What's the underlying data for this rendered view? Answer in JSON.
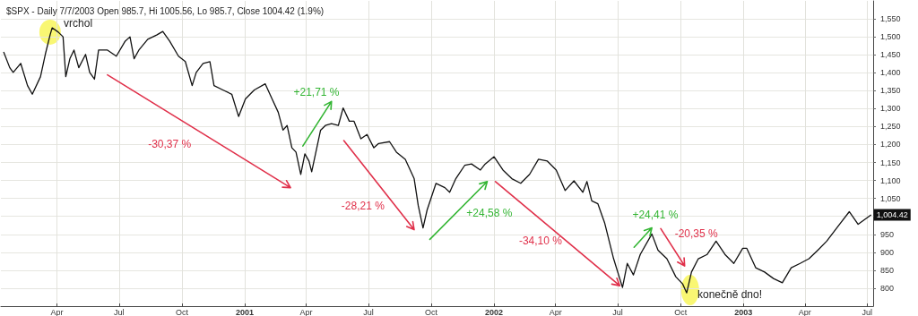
{
  "chart_data": {
    "type": "line",
    "title": "$SPX - Daily 7/7/2003 Open 985.7, Hi 1005.56, Lo 985.7, Close 1004.42 (1.9%)",
    "x": [
      "2000-01-14",
      "2000-01-23",
      "2000-01-28",
      "2000-02-08",
      "2000-02-18",
      "2000-02-25",
      "2000-03-08",
      "2000-03-15",
      "2000-03-22",
      "2000-03-25",
      "2000-04-03",
      "2000-04-10",
      "2000-04-14",
      "2000-04-20",
      "2000-04-26",
      "2000-05-03",
      "2000-05-13",
      "2000-05-19",
      "2000-05-26",
      "2000-06-01",
      "2000-06-14",
      "2000-06-27",
      "2000-07-10",
      "2000-07-17",
      "2000-07-23",
      "2000-07-30",
      "2000-08-12",
      "2000-08-25",
      "2000-09-03",
      "2000-09-13",
      "2000-09-26",
      "2000-10-06",
      "2000-10-16",
      "2000-10-22",
      "2000-11-01",
      "2000-11-11",
      "2000-11-17",
      "2000-11-30",
      "2000-12-13",
      "2000-12-23",
      "2001-01-02",
      "2001-01-15",
      "2001-01-31",
      "2001-02-10",
      "2001-02-19",
      "2001-02-26",
      "2001-03-04",
      "2001-03-11",
      "2001-03-17",
      "2001-03-24",
      "2001-03-30",
      "2001-04-05",
      "2001-04-09",
      "2001-04-22",
      "2001-04-29",
      "2001-05-08",
      "2001-05-18",
      "2001-05-25",
      "2001-06-03",
      "2001-06-10",
      "2001-06-20",
      "2001-06-29",
      "2001-07-09",
      "2001-07-16",
      "2001-08-01",
      "2001-08-11",
      "2001-08-24",
      "2001-09-06",
      "2001-09-12",
      "2001-09-19",
      "2001-09-25",
      "2001-10-08",
      "2001-10-21",
      "2001-10-28",
      "2001-11-06",
      "2001-11-19",
      "2001-11-29",
      "2001-12-12",
      "2001-12-19",
      "2002-01-01",
      "2002-01-14",
      "2002-01-27",
      "2002-02-09",
      "2002-02-22",
      "2002-03-07",
      "2002-03-20",
      "2002-04-02",
      "2002-04-15",
      "2002-04-28",
      "2002-05-11",
      "2002-05-17",
      "2002-05-24",
      "2002-06-02",
      "2002-06-12",
      "2002-06-25",
      "2002-07-08",
      "2002-07-15",
      "2002-07-24",
      "2002-08-03",
      "2002-08-20",
      "2002-08-29",
      "2002-09-11",
      "2002-09-24",
      "2002-10-04",
      "2002-10-10",
      "2002-10-17",
      "2002-10-27",
      "2002-11-09",
      "2002-11-22",
      "2002-12-05",
      "2002-12-18",
      "2002-12-31",
      "2003-01-06",
      "2003-01-19",
      "2003-02-01",
      "2003-02-14",
      "2003-02-27",
      "2003-03-12",
      "2003-03-25",
      "2003-04-07",
      "2003-04-20",
      "2003-05-03",
      "2003-05-23",
      "2003-06-05",
      "2003-06-18",
      "2003-07-07"
    ],
    "series": [
      {
        "color": "#111111",
        "values": [
          1458,
          1414,
          1401,
          1426,
          1364,
          1340,
          1389,
          1451,
          1505,
          1525,
          1513,
          1500,
          1389,
          1439,
          1463,
          1414,
          1451,
          1401,
          1382,
          1463,
          1463,
          1446,
          1488,
          1500,
          1439,
          1463,
          1493,
          1505,
          1515,
          1488,
          1446,
          1431,
          1364,
          1401,
          1426,
          1431,
          1364,
          1352,
          1340,
          1278,
          1327,
          1352,
          1369,
          1327,
          1290,
          1240,
          1253,
          1191,
          1179,
          1117,
          1174,
          1154,
          1124,
          1240,
          1253,
          1258,
          1253,
          1302,
          1265,
          1265,
          1216,
          1228,
          1191,
          1203,
          1208,
          1179,
          1159,
          1105,
          1030,
          968,
          1018,
          1092,
          1080,
          1067,
          1105,
          1142,
          1146,
          1129,
          1146,
          1166,
          1129,
          1105,
          1092,
          1117,
          1159,
          1154,
          1129,
          1072,
          1099,
          1067,
          1097,
          1043,
          1035,
          981,
          882,
          802,
          869,
          837,
          894,
          951,
          906,
          882,
          832,
          812,
          787,
          845,
          882,
          894,
          931,
          894,
          869,
          911,
          911,
          857,
          845,
          827,
          815,
          857,
          869,
          882,
          906,
          931,
          981,
          1013,
          978,
          1004.42
        ],
        "value_labels": [
          null,
          null,
          null,
          null,
          null,
          null,
          null,
          null,
          null,
          null,
          null,
          null,
          null,
          null,
          null,
          null,
          null,
          null,
          null,
          null,
          null,
          null,
          null,
          null,
          null,
          null,
          null,
          null,
          null,
          null,
          null,
          null,
          null,
          null,
          null,
          null,
          null,
          null,
          null,
          null,
          null,
          null,
          null,
          null,
          null,
          null,
          null,
          null,
          null,
          null,
          null,
          null,
          null,
          null,
          null,
          null,
          null,
          null,
          null,
          null,
          null,
          null,
          null,
          null,
          null,
          null,
          null,
          null,
          null,
          null,
          null,
          null,
          null,
          null,
          null,
          null,
          null,
          null,
          null,
          null,
          null,
          null,
          null,
          null,
          null,
          null,
          null,
          null,
          null,
          null,
          null,
          null,
          null,
          null,
          null,
          null,
          null,
          null,
          null,
          null,
          null,
          null,
          null,
          null,
          null,
          null,
          null,
          null,
          null,
          null,
          null,
          null,
          null,
          null,
          null,
          null,
          null,
          null,
          null,
          null,
          null,
          null,
          null,
          null,
          null,
          "1,004.42"
        ]
      }
    ],
    "xlim": [
      "2000-01-10",
      "2003-07-10"
    ],
    "xticks": [
      {
        "value": "2000-04-01",
        "label": "Apr"
      },
      {
        "value": "2000-07-01",
        "label": "Jul"
      },
      {
        "value": "2000-10-01",
        "label": "Oct"
      },
      {
        "value": "2001-01-01",
        "label": "2001"
      },
      {
        "value": "2001-04-01",
        "label": "Apr"
      },
      {
        "value": "2001-07-01",
        "label": "Jul"
      },
      {
        "value": "2001-10-01",
        "label": "Oct"
      },
      {
        "value": "2002-01-01",
        "label": "2002"
      },
      {
        "value": "2002-04-01",
        "label": "Apr"
      },
      {
        "value": "2002-07-01",
        "label": "Jul"
      },
      {
        "value": "2002-10-01",
        "label": "Oct"
      },
      {
        "value": "2003-01-01",
        "label": "2003"
      },
      {
        "value": "2003-04-01",
        "label": "Apr"
      },
      {
        "value": "2003-07-01",
        "label": "Jul"
      }
    ],
    "ylim": [
      750,
      1600
    ],
    "yticks": [
      800,
      850,
      900,
      950,
      {
        "value": 1000,
        "label": null
      },
      {
        "value": 1050,
        "label": "1,050"
      },
      {
        "value": 1100,
        "label": "1,100"
      },
      {
        "value": 1150,
        "label": "1,150"
      },
      {
        "value": 1200,
        "label": "1,200"
      },
      {
        "value": 1250,
        "label": "1,250"
      },
      {
        "value": 1300,
        "label": "1,300"
      },
      {
        "value": 1350,
        "label": "1,350"
      },
      {
        "value": 1400,
        "label": "1,400"
      },
      {
        "value": 1450,
        "label": "1,450"
      },
      {
        "value": 1500,
        "label": "1,500"
      },
      {
        "value": 1550,
        "label": "1,550"
      }
    ],
    "grid": true,
    "marker": "none",
    "line_style": "solid",
    "annotations": [
      "vrchol",
      "-30,37 %",
      "+21,71 %",
      "-28,21 %",
      "+24,58 %",
      "-34,10 %",
      "+24,41 %",
      "-20,35 %",
      "konečně dno!"
    ]
  }
}
